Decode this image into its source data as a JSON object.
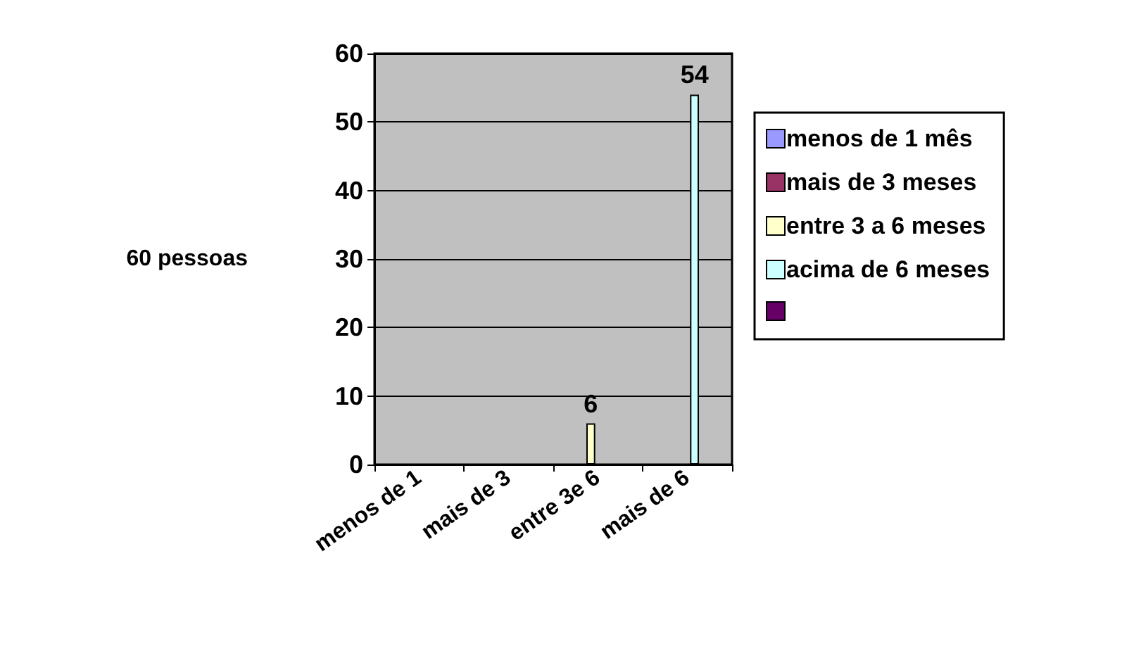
{
  "chart_data": {
    "type": "bar",
    "ylabel": "60 pessoas",
    "categories": [
      "menos de 1",
      "mais de 3",
      "entre 3e 6",
      "mais de 6"
    ],
    "series": [
      {
        "name": "menos de 1 mês",
        "color": "#9999ff",
        "values": [
          null,
          null,
          null,
          null
        ]
      },
      {
        "name": "mais de 3 meses",
        "color": "#993366",
        "values": [
          null,
          null,
          null,
          null
        ]
      },
      {
        "name": "entre 3 a 6 meses",
        "color": "#ffffcc",
        "values": [
          null,
          null,
          6,
          null
        ]
      },
      {
        "name": "acima de 6 meses",
        "color": "#ccffff",
        "values": [
          null,
          null,
          null,
          54
        ]
      },
      {
        "color": "#660066",
        "values": [
          null,
          null,
          null,
          null
        ]
      }
    ],
    "ylim": [
      0,
      60
    ],
    "yticks": [
      0,
      10,
      20,
      30,
      40,
      50,
      60
    ],
    "grid": "y",
    "legend": "right",
    "data_labels": true
  }
}
